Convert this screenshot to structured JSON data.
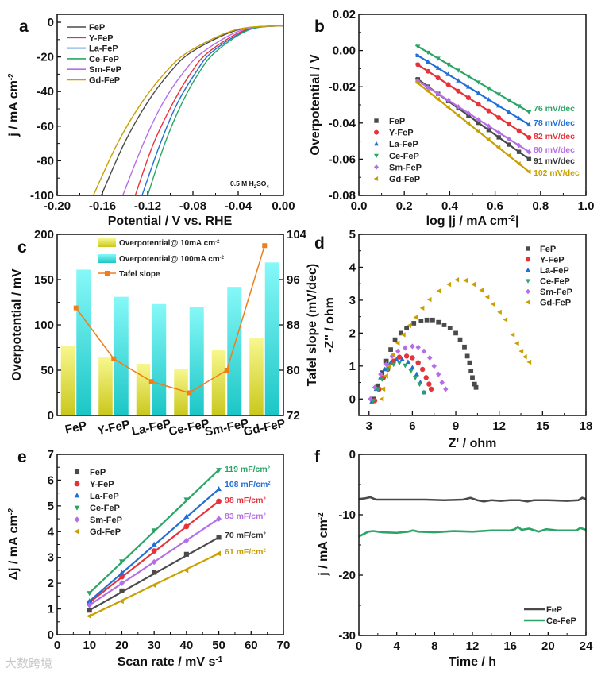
{
  "colors": {
    "FeP": "#4a4a4a",
    "Y-FeP": "#e8323a",
    "La-FeP": "#1f6fd6",
    "Ce-FeP": "#2aa566",
    "Sm-FeP": "#b46ee6",
    "Gd-FeP": "#c9a000",
    "orange": "#f07d1a"
  },
  "watermark": "大数跨境",
  "chart_data": [
    {
      "panel": "a",
      "type": "line",
      "xlabel": "Potential / V vs. RHE",
      "ylabel": "j / mA cm",
      "ylabel_sup": "-2",
      "xlim": [
        -0.2,
        0.0
      ],
      "ylim": [
        -100,
        4.6
      ],
      "xticks": [
        "-0.20",
        "-0.16",
        "-0.12",
        "-0.08",
        "-0.04",
        "0.00"
      ],
      "xtick_values": [
        -0.2,
        -0.16,
        -0.12,
        -0.08,
        -0.04,
        0
      ],
      "yticks": [
        "0",
        "-20",
        "-40",
        "-60",
        "-80",
        "-100"
      ],
      "ytick_values": [
        0,
        -20,
        -40,
        -60,
        -80,
        -100
      ],
      "annotation": "0.5 M H",
      "annotation_sub1": "2",
      "annotation_mid": "SO",
      "annotation_sub2": "4",
      "legend": "top-left",
      "j": [
        -2,
        -4.3,
        -17.1,
        -29.5,
        -47.1,
        -70.3,
        -100
      ],
      "series": [
        {
          "name": "FeP",
          "potential": [
            0,
            -0.04,
            -0.081,
            -0.101,
            -0.121,
            -0.141,
            -0.161
          ]
        },
        {
          "name": "Y-FeP",
          "potential": [
            0,
            -0.033,
            -0.066,
            -0.082,
            -0.098,
            -0.115,
            -0.131
          ]
        },
        {
          "name": "La-FeP",
          "potential": [
            0,
            -0.031,
            -0.063,
            -0.078,
            -0.094,
            -0.109,
            -0.125
          ]
        },
        {
          "name": "Ce-FeP",
          "potential": [
            0,
            -0.03,
            -0.06,
            -0.075,
            -0.09,
            -0.105,
            -0.12
          ]
        },
        {
          "name": "Sm-FeP",
          "potential": [
            0,
            -0.036,
            -0.071,
            -0.089,
            -0.107,
            -0.124,
            -0.142
          ]
        },
        {
          "name": "Gd-FeP",
          "potential": [
            0,
            -0.042,
            -0.084,
            -0.105,
            -0.126,
            -0.147,
            -0.168
          ]
        }
      ]
    },
    {
      "panel": "b",
      "type": "scatter",
      "xlabel": "log |j / mA cm",
      "xlabel_sup": "-2",
      "xlabel_end": "|",
      "ylabel": "Overpotential / V",
      "xlim": [
        0,
        1
      ],
      "ylim": [
        -0.08,
        0.02
      ],
      "xticks": [
        "0.0",
        "0.2",
        "0.4",
        "0.6",
        "0.8",
        "1.0"
      ],
      "xtick_values": [
        0,
        0.2,
        0.4,
        0.6,
        0.8,
        1.0
      ],
      "yticks": [
        "0.02",
        "0.00",
        "-0.02",
        "-0.04",
        "-0.06",
        "-0.08"
      ],
      "ytick_values": [
        0.02,
        0,
        -0.02,
        -0.04,
        -0.06,
        -0.08
      ],
      "legend": "bottom-left",
      "x_range": [
        0.25,
        0.75
      ],
      "series": [
        {
          "name": "FeP",
          "y_start": -0.015,
          "y_end": -0.06,
          "tafel": "91 mV/dec"
        },
        {
          "name": "Y-FeP",
          "y_start": -0.007,
          "y_end": -0.048,
          "tafel": "82 mV/dec"
        },
        {
          "name": "La-FeP",
          "y_start": -0.002,
          "y_end": -0.041,
          "tafel": "78 mV/dec"
        },
        {
          "name": "Ce-FeP",
          "y_start": 0.003,
          "y_end": -0.034,
          "tafel": "76 mV/dec"
        },
        {
          "name": "Sm-FeP",
          "y_start": -0.016,
          "y_end": -0.056,
          "tafel": "80 mV/dec"
        },
        {
          "name": "Gd-FeP",
          "y_start": -0.017,
          "y_end": -0.067,
          "tafel": "102 mV/dec"
        }
      ]
    },
    {
      "panel": "c",
      "type": "bar",
      "ylabel": "Overpotential / mV",
      "y2label": "Tafel slope (mV/dec)",
      "ylim": [
        0,
        200
      ],
      "y2lim": [
        72,
        104
      ],
      "yticks": [
        "0",
        "50",
        "100",
        "150",
        "200"
      ],
      "ytick_values": [
        0,
        50,
        100,
        150,
        200
      ],
      "y2ticks": [
        "72",
        "80",
        "88",
        "96",
        "104"
      ],
      "y2tick_values": [
        72,
        80,
        88,
        96,
        104
      ],
      "categories": [
        "FeP",
        "Y-FeP",
        "La-FeP",
        "Ce-FeP",
        "Sm-FeP",
        "Gd-FeP"
      ],
      "legend": "top-center",
      "series": [
        {
          "name": "Overpotential@ 10mA cm",
          "sup": "-2",
          "values": [
            77,
            64,
            57,
            51,
            72,
            85
          ]
        },
        {
          "name": "Overpotential@ 100mA cm",
          "sup": "-2",
          "values": [
            161,
            131,
            123,
            120,
            142,
            169
          ]
        },
        {
          "name": "Tafel slope",
          "axis": "right",
          "values": [
            91,
            82,
            78,
            76,
            80,
            102
          ]
        }
      ]
    },
    {
      "panel": "d",
      "type": "scatter",
      "xlabel": "Z' / ohm",
      "ylabel": "-Z'' / ohm",
      "xlim": [
        2.3,
        18
      ],
      "ylim": [
        -0.5,
        5
      ],
      "xticks": [
        "3",
        "6",
        "9",
        "12",
        "15",
        "18"
      ],
      "xtick_values": [
        3,
        6,
        9,
        12,
        15,
        18
      ],
      "yticks": [
        "0",
        "1",
        "2",
        "3",
        "4",
        "5"
      ],
      "ytick_values": [
        0,
        1,
        2,
        3,
        4,
        5
      ],
      "legend": "top-right",
      "series": [
        {
          "name": "FeP",
          "points": [
            [
              3.3,
              0
            ],
            [
              3.6,
              0.4
            ],
            [
              3.9,
              0.8
            ],
            [
              4.2,
              1.15
            ],
            [
              4.5,
              1.5
            ],
            [
              4.8,
              1.8
            ],
            [
              5.2,
              2.0
            ],
            [
              5.6,
              2.15
            ],
            [
              6.1,
              2.3
            ],
            [
              6.6,
              2.37
            ],
            [
              7.0,
              2.4
            ],
            [
              7.4,
              2.4
            ],
            [
              7.8,
              2.33
            ],
            [
              8.2,
              2.25
            ],
            [
              8.6,
              2.15
            ],
            [
              9.0,
              2.0
            ],
            [
              9.3,
              1.8
            ],
            [
              9.6,
              1.58
            ],
            [
              9.8,
              1.3
            ],
            [
              9.95,
              1.1
            ],
            [
              10.05,
              0.85
            ],
            [
              10.15,
              0.65
            ],
            [
              10.3,
              0.45
            ],
            [
              10.4,
              0.35
            ]
          ]
        },
        {
          "name": "Y-FeP",
          "points": [
            [
              3.4,
              -0.05
            ],
            [
              3.7,
              0.3
            ],
            [
              4.0,
              0.65
            ],
            [
              4.3,
              0.9
            ],
            [
              4.7,
              1.15
            ],
            [
              5.1,
              1.27
            ],
            [
              5.6,
              1.3
            ],
            [
              6.0,
              1.25
            ],
            [
              6.4,
              1.1
            ],
            [
              6.7,
              0.9
            ],
            [
              6.95,
              0.65
            ],
            [
              7.15,
              0.45
            ],
            [
              7.3,
              0.3
            ]
          ]
        },
        {
          "name": "La-FeP",
          "points": [
            [
              3.2,
              -0.08
            ],
            [
              3.5,
              0.3
            ],
            [
              3.8,
              0.65
            ],
            [
              4.1,
              0.9
            ],
            [
              4.5,
              1.1
            ],
            [
              4.9,
              1.2
            ],
            [
              5.3,
              1.2
            ],
            [
              5.7,
              1.12
            ],
            [
              6.0,
              0.95
            ],
            [
              6.3,
              0.75
            ],
            [
              6.55,
              0.5
            ],
            [
              6.8,
              0.2
            ]
          ]
        },
        {
          "name": "Ce-FeP",
          "points": [
            [
              3.3,
              -0.05
            ],
            [
              3.6,
              0.3
            ],
            [
              3.9,
              0.6
            ],
            [
              4.3,
              0.9
            ],
            [
              4.7,
              1.05
            ],
            [
              5.1,
              1.1
            ],
            [
              5.5,
              1.02
            ],
            [
              5.9,
              0.85
            ],
            [
              6.2,
              0.65
            ],
            [
              6.5,
              0.45
            ],
            [
              6.8,
              0.2
            ]
          ]
        },
        {
          "name": "Sm-FeP",
          "points": [
            [
              3.1,
              0
            ],
            [
              3.4,
              0.35
            ],
            [
              3.8,
              0.75
            ],
            [
              4.2,
              1.05
            ],
            [
              4.6,
              1.3
            ],
            [
              5.0,
              1.45
            ],
            [
              5.5,
              1.55
            ],
            [
              6.0,
              1.6
            ],
            [
              6.4,
              1.57
            ],
            [
              6.8,
              1.45
            ],
            [
              7.2,
              1.25
            ],
            [
              7.5,
              1.0
            ],
            [
              7.8,
              0.75
            ],
            [
              8.05,
              0.5
            ],
            [
              8.3,
              0.3
            ]
          ]
        },
        {
          "name": "Gd-FeP",
          "points": [
            [
              3.9,
              0
            ],
            [
              4.0,
              0.3
            ],
            [
              4.2,
              0.7
            ],
            [
              4.4,
              1.0
            ],
            [
              4.7,
              1.35
            ],
            [
              5.0,
              1.7
            ],
            [
              5.4,
              1.95
            ],
            [
              5.8,
              2.23
            ],
            [
              6.25,
              2.48
            ],
            [
              6.7,
              2.76
            ],
            [
              7.2,
              3.02
            ],
            [
              7.85,
              3.28
            ],
            [
              8.55,
              3.48
            ],
            [
              9.1,
              3.62
            ],
            [
              9.7,
              3.6
            ],
            [
              10.25,
              3.48
            ],
            [
              10.8,
              3.3
            ],
            [
              11.2,
              3.1
            ],
            [
              11.6,
              2.88
            ],
            [
              12.05,
              2.64
            ],
            [
              12.45,
              2.41
            ],
            [
              12.95,
              1.95
            ],
            [
              13.25,
              1.69
            ],
            [
              13.55,
              1.45
            ],
            [
              13.8,
              1.28
            ],
            [
              14.1,
              1.12
            ]
          ]
        }
      ]
    },
    {
      "panel": "e",
      "type": "scatter",
      "xlabel": "Scan rate / mV s",
      "xlabel_sup": "-1",
      "ylabel": "Δj / mA cm",
      "ylabel_sup": "-2",
      "xlim": [
        0,
        70
      ],
      "ylim": [
        0,
        7
      ],
      "xticks": [
        "0",
        "10",
        "20",
        "30",
        "40",
        "50",
        "60",
        "70"
      ],
      "xtick_values": [
        0,
        10,
        20,
        30,
        40,
        50,
        60,
        70
      ],
      "yticks": [
        "0",
        "1",
        "2",
        "3",
        "4",
        "5",
        "6",
        "7"
      ],
      "ytick_values": [
        0,
        1,
        2,
        3,
        4,
        5,
        6,
        7
      ],
      "legend": "top-left",
      "x": [
        10,
        20,
        30,
        40,
        50
      ],
      "series": [
        {
          "name": "FeP",
          "values": [
            0.95,
            1.7,
            2.42,
            3.12,
            3.78
          ],
          "cdl": "70 mF/cm",
          "sup": "2"
        },
        {
          "name": "Y-FeP",
          "values": [
            1.25,
            2.25,
            3.25,
            4.2,
            5.18
          ],
          "cdl": "98 mF/cm",
          "sup": "2"
        },
        {
          "name": "La-FeP",
          "values": [
            1.3,
            2.4,
            3.5,
            4.58,
            5.65
          ],
          "cdl": "108 mF/cm",
          "sup": "2"
        },
        {
          "name": "Ce-FeP",
          "values": [
            1.62,
            2.85,
            4.05,
            5.25,
            6.4
          ],
          "cdl": "119 mF/cm",
          "sup": "2"
        },
        {
          "name": "Sm-FeP",
          "values": [
            1.15,
            2.0,
            2.82,
            3.65,
            4.5
          ],
          "cdl": "83 mF/cm",
          "sup": "2"
        },
        {
          "name": "Gd-FeP",
          "values": [
            0.72,
            1.3,
            1.92,
            2.5,
            3.15
          ],
          "cdl": "61 mF/cm",
          "sup": "2"
        }
      ]
    },
    {
      "panel": "f",
      "type": "line",
      "xlabel": "Time / h",
      "ylabel": "j / mA cm",
      "ylabel_sup": "-2",
      "xlim": [
        0,
        24
      ],
      "ylim": [
        -30,
        0
      ],
      "xticks": [
        "0",
        "4",
        "8",
        "12",
        "16",
        "20",
        "24"
      ],
      "xtick_values": [
        0,
        4,
        8,
        12,
        16,
        20,
        24
      ],
      "yticks": [
        "0",
        "-10",
        "-20",
        "-30"
      ],
      "ytick_values": [
        0,
        -10,
        -20,
        -30
      ],
      "legend": "bottom-right",
      "series": [
        {
          "name": "FeP",
          "points": [
            [
              0,
              -7.4
            ],
            [
              0.6,
              -7.3
            ],
            [
              1.2,
              -7.1
            ],
            [
              1.8,
              -7.5
            ],
            [
              3,
              -7.5
            ],
            [
              5,
              -7.5
            ],
            [
              7,
              -7.5
            ],
            [
              9,
              -7.6
            ],
            [
              11,
              -7.5
            ],
            [
              11.8,
              -7.2
            ],
            [
              12.5,
              -7.6
            ],
            [
              13.2,
              -7.8
            ],
            [
              14,
              -7.6
            ],
            [
              15,
              -7.7
            ],
            [
              16,
              -7.6
            ],
            [
              17,
              -7.6
            ],
            [
              17.8,
              -7.8
            ],
            [
              18.5,
              -7.6
            ],
            [
              20,
              -7.6
            ],
            [
              22,
              -7.7
            ],
            [
              23.2,
              -7.6
            ],
            [
              23.6,
              -7.2
            ],
            [
              24,
              -7.4
            ]
          ]
        },
        {
          "name": "Ce-FeP",
          "points": [
            [
              0,
              -13.6
            ],
            [
              0.5,
              -13.2
            ],
            [
              1,
              -12.8
            ],
            [
              1.5,
              -12.7
            ],
            [
              2.5,
              -12.9
            ],
            [
              4,
              -13.0
            ],
            [
              5.2,
              -12.8
            ],
            [
              5.7,
              -12.6
            ],
            [
              6.3,
              -12.8
            ],
            [
              8,
              -12.9
            ],
            [
              10,
              -12.7
            ],
            [
              12,
              -12.8
            ],
            [
              14,
              -12.6
            ],
            [
              16,
              -12.6
            ],
            [
              16.5,
              -12.4
            ],
            [
              16.8,
              -12.0
            ],
            [
              17.2,
              -12.5
            ],
            [
              18,
              -12.3
            ],
            [
              19,
              -12.8
            ],
            [
              19.8,
              -12.4
            ],
            [
              21,
              -12.6
            ],
            [
              23,
              -12.6
            ],
            [
              23.4,
              -12.2
            ],
            [
              24,
              -12.5
            ]
          ]
        }
      ]
    }
  ]
}
